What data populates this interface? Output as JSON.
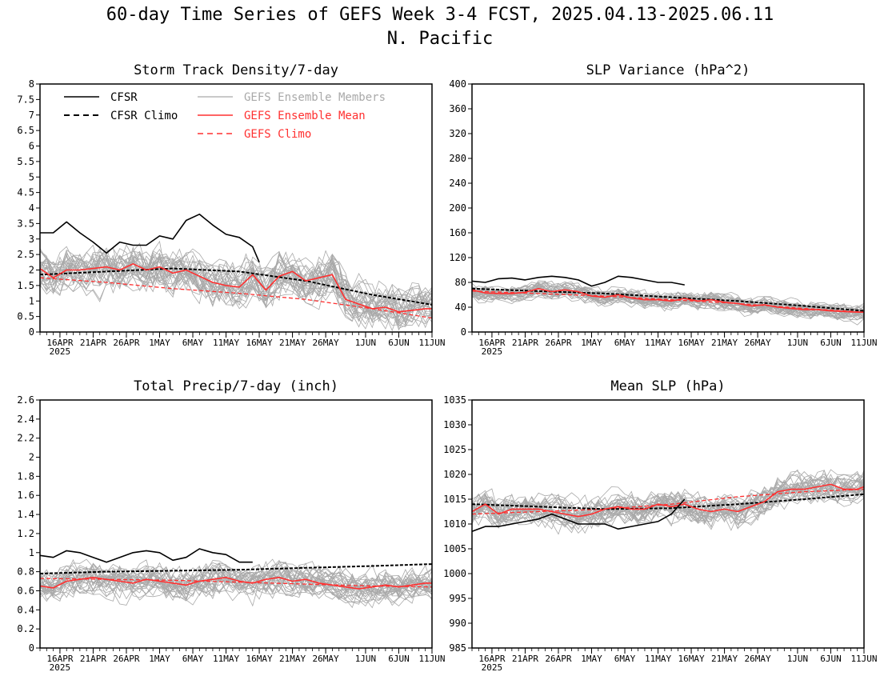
{
  "figure": {
    "title_line1": "60-day Time Series of GEFS Week 3-4 FCST, 2025.04.13-2025.06.11",
    "title_line2": "N. Pacific"
  },
  "colors": {
    "cfsr": "#000000",
    "members": "#a9a9a9",
    "ensemble_mean": "#ff3030",
    "gefs_climo": "#ff3030",
    "cfsr_climo": "#000000"
  },
  "legend": {
    "cfsr": "CFSR",
    "cfsr_climo": "CFSR Climo",
    "members": "GEFS Ensemble Members",
    "mean": "GEFS Ensemble Mean",
    "gefs_climo": "GEFS Climo"
  },
  "x_axis": {
    "days": 60,
    "tick_labels": [
      "16APR",
      "21APR",
      "26APR",
      "1MAY",
      "6MAY",
      "11MAY",
      "16MAY",
      "21MAY",
      "26MAY",
      "1JUN",
      "6JUN",
      "11JUN"
    ],
    "tick_day_index": [
      3,
      8,
      13,
      18,
      23,
      28,
      33,
      38,
      43,
      49,
      54,
      59
    ],
    "year_label": "2025"
  },
  "chart_data": [
    {
      "id": "storm",
      "type": "line",
      "title": "Storm Track Density/7-day",
      "ylim": [
        0,
        8
      ],
      "yticks": [
        "0",
        "0.5",
        "1",
        "1.5",
        "2",
        "2.5",
        "3",
        "3.5",
        "4",
        "4.5",
        "5",
        "5.5",
        "6",
        "6.5",
        "7",
        "7.5",
        "8"
      ],
      "legend_location": "upper-left",
      "member_count": 30,
      "member_spread": 0.75,
      "cfsr": {
        "x": [
          0,
          2,
          4,
          6,
          8,
          10,
          12,
          14,
          16,
          18,
          20,
          22,
          24,
          26,
          28,
          30,
          32,
          33
        ],
        "y": [
          3.2,
          3.2,
          3.55,
          3.2,
          2.9,
          2.55,
          2.9,
          2.8,
          2.8,
          3.1,
          3.0,
          3.6,
          3.8,
          3.45,
          3.15,
          3.05,
          2.75,
          2.25
        ]
      },
      "mean": {
        "x": [
          0,
          2,
          4,
          6,
          8,
          10,
          12,
          14,
          16,
          18,
          20,
          22,
          24,
          26,
          28,
          30,
          32,
          34,
          36,
          38,
          40,
          42,
          44,
          46,
          48,
          50,
          52,
          54,
          56,
          58,
          59
        ],
        "y": [
          2.05,
          1.75,
          2.0,
          2.0,
          2.05,
          2.1,
          2.0,
          2.2,
          2.0,
          2.1,
          1.9,
          2.0,
          1.8,
          1.6,
          1.5,
          1.45,
          1.85,
          1.35,
          1.8,
          1.95,
          1.65,
          1.75,
          1.85,
          1.05,
          0.9,
          0.75,
          0.8,
          0.65,
          0.7,
          0.75,
          0.75
        ]
      },
      "cfsr_climo": {
        "x": [
          0,
          10,
          20,
          30,
          40,
          50,
          59
        ],
        "y": [
          1.85,
          1.95,
          2.05,
          1.95,
          1.65,
          1.2,
          0.88
        ]
      },
      "gefs_climo": {
        "x": [
          0,
          10,
          20,
          30,
          40,
          50,
          59
        ],
        "y": [
          1.75,
          1.6,
          1.4,
          1.25,
          1.05,
          0.75,
          0.45
        ]
      }
    },
    {
      "id": "slpvar",
      "type": "line",
      "title": "SLP Variance (hPa^2)",
      "ylim": [
        0,
        400
      ],
      "yticks": [
        "0",
        "40",
        "80",
        "120",
        "160",
        "200",
        "240",
        "280",
        "320",
        "360",
        "400"
      ],
      "member_count": 30,
      "member_spread": 14,
      "cfsr": {
        "x": [
          0,
          2,
          4,
          6,
          8,
          10,
          12,
          14,
          16,
          18,
          20,
          22,
          24,
          26,
          28,
          30,
          32
        ],
        "y": [
          82,
          80,
          86,
          87,
          84,
          88,
          90,
          88,
          84,
          74,
          80,
          90,
          88,
          84,
          80,
          80,
          76
        ]
      },
      "mean": {
        "x": [
          0,
          2,
          4,
          6,
          8,
          10,
          12,
          14,
          16,
          18,
          20,
          22,
          24,
          26,
          28,
          30,
          32,
          34,
          36,
          38,
          40,
          42,
          44,
          46,
          48,
          50,
          52,
          54,
          56,
          58,
          59
        ],
        "y": [
          68,
          63,
          62,
          62,
          64,
          70,
          65,
          68,
          65,
          58,
          56,
          60,
          55,
          52,
          52,
          50,
          54,
          50,
          52,
          48,
          46,
          42,
          44,
          40,
          38,
          36,
          36,
          34,
          33,
          32,
          32
        ]
      },
      "cfsr_climo": {
        "x": [
          0,
          10,
          20,
          30,
          40,
          50,
          59
        ],
        "y": [
          70,
          66,
          62,
          56,
          50,
          42,
          34
        ]
      },
      "gefs_climo": {
        "x": [
          0,
          10,
          20,
          30,
          40,
          50,
          59
        ],
        "y": [
          66,
          62,
          58,
          52,
          46,
          38,
          32
        ]
      }
    },
    {
      "id": "precip",
      "type": "line",
      "title": "Total Precip/7-day (inch)",
      "ylim": [
        0,
        2.6
      ],
      "yticks": [
        "0",
        "0.2",
        "0.4",
        "0.6",
        "0.8",
        "1",
        "1.2",
        "1.4",
        "1.6",
        "1.8",
        "2",
        "2.2",
        "2.4",
        "2.6"
      ],
      "member_count": 30,
      "member_spread": 0.18,
      "cfsr": {
        "x": [
          0,
          2,
          4,
          6,
          8,
          10,
          12,
          14,
          16,
          18,
          20,
          22,
          24,
          26,
          28,
          30,
          32
        ],
        "y": [
          0.97,
          0.95,
          1.02,
          1.0,
          0.95,
          0.9,
          0.95,
          1.0,
          1.02,
          1.0,
          0.92,
          0.95,
          1.04,
          1.0,
          0.98,
          0.9,
          0.9
        ]
      },
      "mean": {
        "x": [
          0,
          2,
          4,
          6,
          8,
          10,
          12,
          14,
          16,
          18,
          20,
          22,
          24,
          26,
          28,
          30,
          32,
          34,
          36,
          38,
          40,
          42,
          44,
          46,
          48,
          50,
          52,
          54,
          56,
          58,
          59
        ],
        "y": [
          0.65,
          0.63,
          0.7,
          0.72,
          0.74,
          0.72,
          0.7,
          0.68,
          0.72,
          0.7,
          0.68,
          0.66,
          0.7,
          0.72,
          0.74,
          0.7,
          0.68,
          0.72,
          0.74,
          0.7,
          0.72,
          0.68,
          0.66,
          0.64,
          0.62,
          0.64,
          0.66,
          0.64,
          0.66,
          0.68,
          0.68
        ]
      },
      "cfsr_climo": {
        "x": [
          0,
          10,
          20,
          30,
          40,
          50,
          59
        ],
        "y": [
          0.78,
          0.8,
          0.81,
          0.82,
          0.84,
          0.86,
          0.88
        ]
      },
      "gefs_climo": {
        "x": [
          0,
          10,
          20,
          30,
          40,
          50,
          59
        ],
        "y": [
          0.73,
          0.72,
          0.71,
          0.69,
          0.67,
          0.65,
          0.64
        ]
      }
    },
    {
      "id": "mslp",
      "type": "line",
      "title": "Mean SLP (hPa)",
      "ylim": [
        985,
        1035
      ],
      "yticks": [
        "985",
        "990",
        "995",
        "1000",
        "1005",
        "1010",
        "1015",
        "1020",
        "1025",
        "1030",
        "1035"
      ],
      "member_count": 30,
      "member_spread": 3.2,
      "cfsr": {
        "x": [
          0,
          2,
          4,
          6,
          8,
          10,
          12,
          14,
          16,
          18,
          20,
          22,
          24,
          26,
          28,
          30,
          32
        ],
        "y": [
          1008.5,
          1009.5,
          1009.5,
          1010,
          1010.5,
          1011,
          1012,
          1011,
          1010,
          1010,
          1010,
          1009,
          1009.5,
          1010,
          1010.5,
          1012,
          1015
        ]
      },
      "mean": {
        "x": [
          0,
          2,
          4,
          6,
          8,
          10,
          12,
          14,
          16,
          18,
          20,
          22,
          24,
          26,
          28,
          30,
          32,
          34,
          36,
          38,
          40,
          42,
          44,
          46,
          48,
          50,
          52,
          54,
          56,
          58,
          59
        ],
        "y": [
          1012.5,
          1014,
          1012,
          1013,
          1013,
          1013,
          1012.5,
          1012,
          1011.5,
          1012,
          1013,
          1013.5,
          1013,
          1013,
          1014,
          1013.5,
          1014,
          1013,
          1012.5,
          1013,
          1012.5,
          1013.5,
          1014.5,
          1016.5,
          1017,
          1017,
          1017.5,
          1018,
          1017,
          1017,
          1017.5
        ]
      },
      "cfsr_climo": {
        "x": [
          0,
          10,
          20,
          30,
          40,
          50,
          59
        ],
        "y": [
          1014,
          1013.5,
          1013,
          1013.2,
          1014,
          1015,
          1016
        ]
      },
      "gefs_climo": {
        "x": [
          0,
          10,
          20,
          30,
          40,
          50,
          59
        ],
        "y": [
          1012,
          1012.5,
          1013,
          1014,
          1015.5,
          1016.5,
          1017
        ]
      }
    }
  ]
}
